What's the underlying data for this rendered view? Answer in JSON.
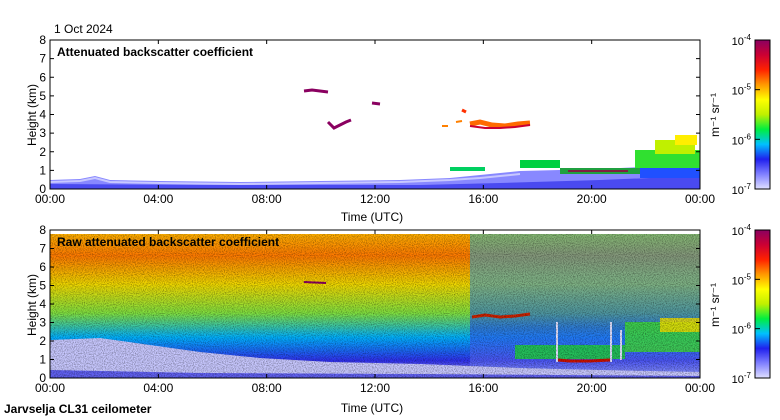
{
  "date_label": "1 Oct 2024",
  "footer_label": "Jarvselja CL31 ceilometer",
  "colorbar": {
    "unit_html": "m⁻¹ sr⁻¹",
    "ticks": [
      {
        "exp": -7,
        "label_base": "10",
        "label_exp": "-7"
      },
      {
        "exp": -6,
        "label_base": "10",
        "label_exp": "-6"
      },
      {
        "exp": -5,
        "label_base": "10",
        "label_exp": "-5"
      },
      {
        "exp": -4,
        "label_base": "10",
        "label_exp": "-4"
      }
    ],
    "colors": [
      "#e0e0ff",
      "#8080ff",
      "#2020ee",
      "#00c0ff",
      "#00ee40",
      "#c0f000",
      "#ffff00",
      "#ff9900",
      "#ff2200",
      "#cc0033",
      "#8a0060"
    ]
  },
  "chart_data": [
    {
      "type": "heatmap",
      "title": "Attenuated backscatter coefficient",
      "xlabel": "Time (UTC)",
      "ylabel": "Height (km)",
      "xlim": [
        0,
        24
      ],
      "ylim": [
        0,
        8
      ],
      "xticks": [
        "00:00",
        "04:00",
        "08:00",
        "12:00",
        "16:00",
        "20:00",
        "00:00"
      ],
      "yticks": [
        "0",
        "1",
        "2",
        "3",
        "4",
        "5",
        "6",
        "7",
        "8"
      ],
      "features": [
        {
          "name": "boundary layer aerosol",
          "time_start": 0,
          "time_end": 24,
          "height_top_km": 0.4,
          "log10_beta": -6.8
        },
        {
          "name": "cloud layer",
          "time_start": 9.5,
          "time_end": 10.2,
          "height_km": 5.2,
          "log10_beta": -4.2
        },
        {
          "name": "cloud layer",
          "time_start": 10.4,
          "time_end": 11.0,
          "height_km": 3.5,
          "log10_beta": -4.2
        },
        {
          "name": "cloud layer",
          "time_start": 12.0,
          "time_end": 12.2,
          "height_km": 4.5,
          "log10_beta": -4.3
        },
        {
          "name": "cloud layer",
          "time_start": 15.5,
          "time_end": 17.7,
          "height_km": 3.4,
          "log10_beta": -4.5
        },
        {
          "name": "low aerosol / cloud",
          "time_start": 19.0,
          "time_end": 24.0,
          "height_km": 1.0,
          "log10_beta": -6.0
        }
      ]
    },
    {
      "type": "heatmap",
      "title": "Raw attenuated backscatter coefficient",
      "xlabel": "Time (UTC)",
      "ylabel": "Height (km)",
      "xlim": [
        0,
        24
      ],
      "ylim": [
        0,
        8
      ],
      "xticks": [
        "00:00",
        "04:00",
        "08:00",
        "12:00",
        "16:00",
        "20:00",
        "00:00"
      ],
      "yticks": [
        "0",
        "1",
        "2",
        "3",
        "4",
        "5",
        "6",
        "7",
        "8"
      ],
      "features": [
        {
          "name": "noise background",
          "time_start": 0,
          "time_end": 24,
          "height_km_range": [
            0,
            7.7
          ],
          "log10_beta": -5.5
        },
        {
          "name": "cloud layer",
          "time_start": 15.7,
          "time_end": 17.7,
          "height_km": 3.4,
          "log10_beta": -4.5
        },
        {
          "name": "low cloud",
          "time_start": 18.8,
          "time_end": 20.8,
          "height_km": 1.0,
          "log10_beta": -4.3
        }
      ]
    }
  ]
}
